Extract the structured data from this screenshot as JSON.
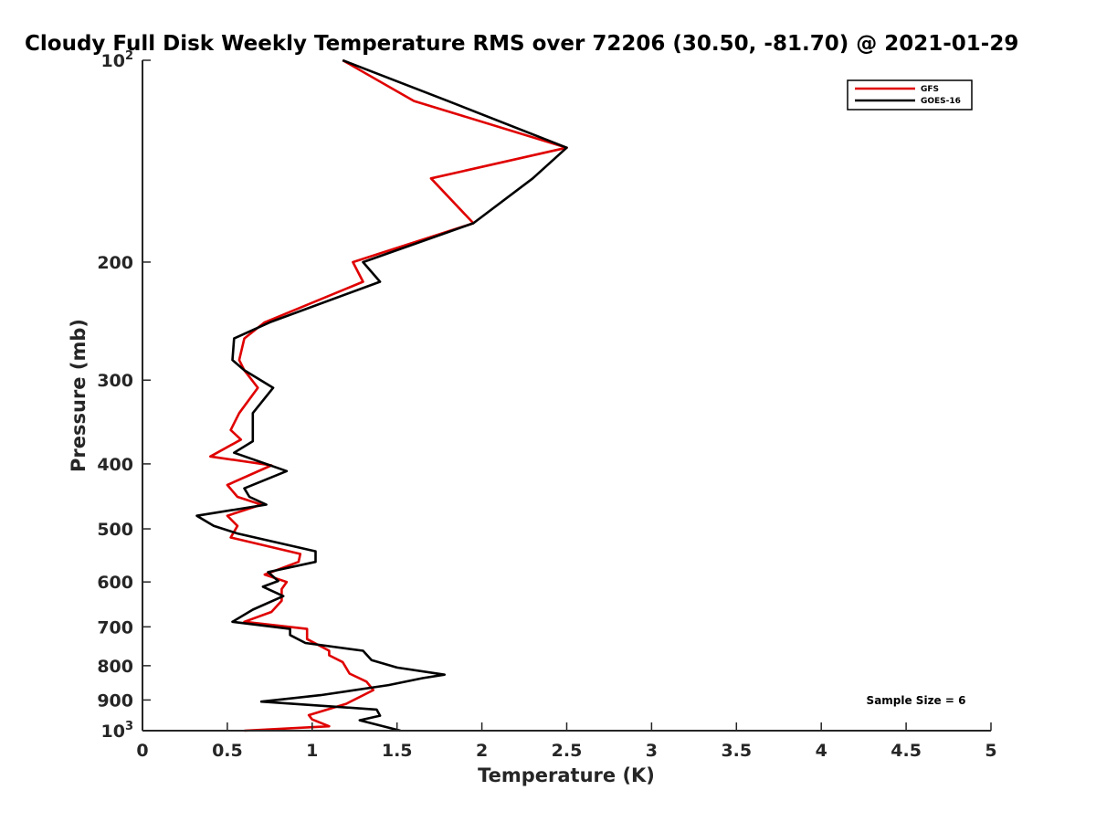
{
  "chart_data": {
    "type": "line",
    "title": "Cloudy Full Disk Weekly Temperature RMS over 72206 (30.50, -81.70) @ 2021-01-29",
    "xlabel": "Temperature (K)",
    "ylabel": "Pressure (mb)",
    "xlim": [
      0,
      5
    ],
    "ylim": [
      1000,
      100
    ],
    "y_scale": "log",
    "y_reversed": true,
    "x_ticks": [
      "0",
      "0.5",
      "1",
      "1.5",
      "2",
      "2.5",
      "3",
      "3.5",
      "4",
      "4.5",
      "5"
    ],
    "x_tick_values": [
      0,
      0.5,
      1,
      1.5,
      2,
      2.5,
      3,
      3.5,
      4,
      4.5,
      5
    ],
    "y_ticks": [
      {
        "value": 100,
        "base": "10",
        "exp": "2"
      },
      {
        "value": 200,
        "label": "200"
      },
      {
        "value": 300,
        "label": "300"
      },
      {
        "value": 400,
        "label": "400"
      },
      {
        "value": 500,
        "label": "500"
      },
      {
        "value": 600,
        "label": "600"
      },
      {
        "value": 700,
        "label": "700"
      },
      {
        "value": 800,
        "label": "800"
      },
      {
        "value": 900,
        "label": "900"
      },
      {
        "value": 1000,
        "base": "10",
        "exp": "3"
      }
    ],
    "grid": false,
    "legend_position": "top-right",
    "annotation": "Sample Size = 6",
    "series": [
      {
        "name": "GFS",
        "color": "#e00000",
        "points": [
          [
            1.18,
            100
          ],
          [
            1.6,
            115
          ],
          [
            2.5,
            135
          ],
          [
            1.7,
            150
          ],
          [
            1.95,
            175
          ],
          [
            1.24,
            200
          ],
          [
            1.3,
            214
          ],
          [
            0.72,
            246
          ],
          [
            0.6,
            260
          ],
          [
            0.57,
            280
          ],
          [
            0.6,
            290
          ],
          [
            0.68,
            308
          ],
          [
            0.57,
            336
          ],
          [
            0.52,
            356
          ],
          [
            0.58,
            368
          ],
          [
            0.4,
            390
          ],
          [
            0.76,
            402
          ],
          [
            0.5,
            430
          ],
          [
            0.56,
            448
          ],
          [
            0.7,
            460
          ],
          [
            0.5,
            478
          ],
          [
            0.56,
            495
          ],
          [
            0.52,
            515
          ],
          [
            0.93,
            545
          ],
          [
            0.92,
            560
          ],
          [
            0.72,
            585
          ],
          [
            0.85,
            600
          ],
          [
            0.82,
            615
          ],
          [
            0.82,
            640
          ],
          [
            0.76,
            665
          ],
          [
            0.6,
            688
          ],
          [
            0.97,
            705
          ],
          [
            0.97,
            730
          ],
          [
            1.1,
            760
          ],
          [
            1.1,
            772
          ],
          [
            1.18,
            790
          ],
          [
            1.22,
            822
          ],
          [
            1.32,
            845
          ],
          [
            1.36,
            870
          ],
          [
            1.2,
            912
          ],
          [
            0.98,
            948
          ],
          [
            1.0,
            962
          ],
          [
            1.1,
            985
          ],
          [
            0.6,
            1000
          ]
        ]
      },
      {
        "name": "GOES-16",
        "color": "#000000",
        "points": [
          [
            1.18,
            100
          ],
          [
            1.8,
            115
          ],
          [
            2.5,
            135
          ],
          [
            2.3,
            150
          ],
          [
            1.95,
            175
          ],
          [
            1.3,
            200
          ],
          [
            1.4,
            214
          ],
          [
            0.75,
            246
          ],
          [
            0.54,
            260
          ],
          [
            0.53,
            280
          ],
          [
            0.6,
            290
          ],
          [
            0.77,
            308
          ],
          [
            0.65,
            336
          ],
          [
            0.65,
            370
          ],
          [
            0.54,
            385
          ],
          [
            0.85,
            410
          ],
          [
            0.6,
            435
          ],
          [
            0.63,
            448
          ],
          [
            0.73,
            460
          ],
          [
            0.32,
            478
          ],
          [
            0.42,
            495
          ],
          [
            0.56,
            508
          ],
          [
            1.02,
            540
          ],
          [
            1.02,
            560
          ],
          [
            0.74,
            580
          ],
          [
            0.8,
            598
          ],
          [
            0.71,
            610
          ],
          [
            0.83,
            630
          ],
          [
            0.65,
            660
          ],
          [
            0.53,
            688
          ],
          [
            0.87,
            705
          ],
          [
            0.87,
            720
          ],
          [
            0.96,
            740
          ],
          [
            1.3,
            760
          ],
          [
            1.35,
            785
          ],
          [
            1.5,
            805
          ],
          [
            1.78,
            825
          ],
          [
            1.65,
            835
          ],
          [
            1.45,
            855
          ],
          [
            1.05,
            885
          ],
          [
            0.7,
            905
          ],
          [
            1.38,
            930
          ],
          [
            1.4,
            950
          ],
          [
            1.28,
            965
          ],
          [
            1.52,
            1000
          ]
        ]
      }
    ]
  }
}
